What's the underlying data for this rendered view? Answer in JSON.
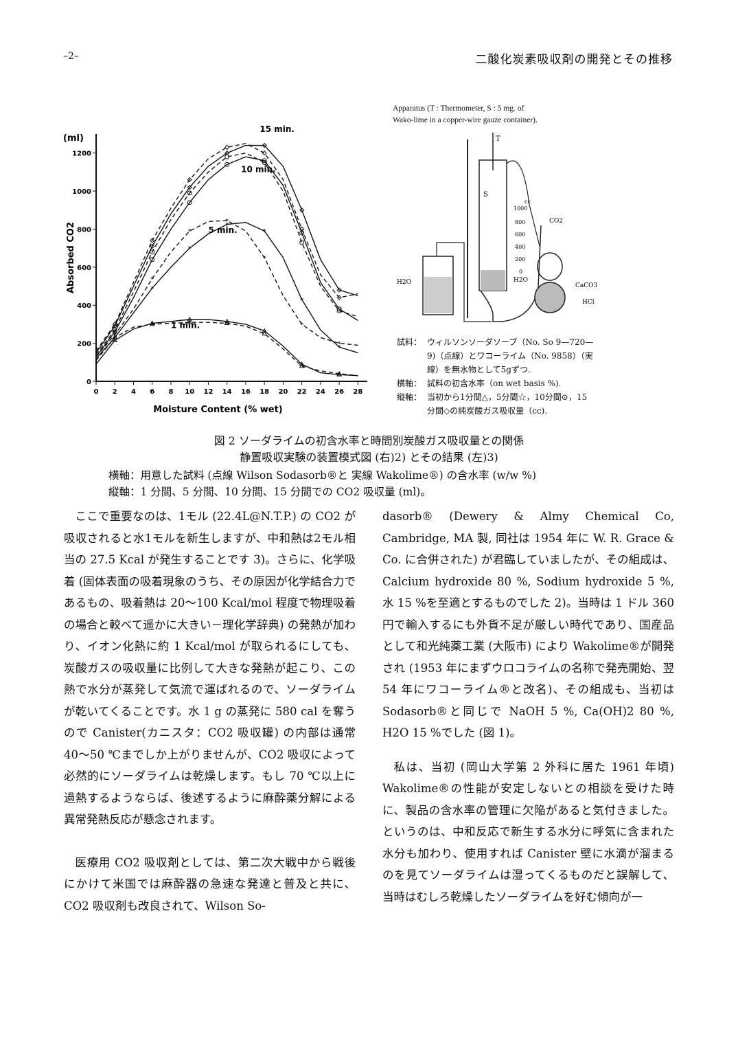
{
  "header": {
    "page_number": "–2–",
    "running_title": "二酸化炭素吸収剤の開発とその推移"
  },
  "chart_data": {
    "type": "line",
    "title": "",
    "xlabel": "Moisture Content (% wet)",
    "ylabel": "Absorbed CO2",
    "yunit": "(ml)",
    "xlim": [
      0,
      29
    ],
    "ylim": [
      0,
      1300
    ],
    "xticks": [
      0,
      2,
      4,
      6,
      8,
      10,
      12,
      14,
      16,
      18,
      20,
      22,
      24,
      26,
      28
    ],
    "yticks": [
      0,
      200,
      400,
      600,
      800,
      1000,
      1200
    ],
    "ytick_labels": [
      "0",
      "200",
      "400",
      "600",
      "800",
      "1000",
      "1200"
    ],
    "series": [
      {
        "name": "1 min.",
        "style": "solid",
        "x": [
          0,
          2,
          4,
          6,
          8,
          10,
          12,
          14,
          16,
          18,
          20,
          22,
          24,
          26,
          28
        ],
        "y": [
          90,
          215,
          275,
          305,
          315,
          325,
          325,
          315,
          300,
          265,
          185,
          90,
          45,
          35,
          30
        ]
      },
      {
        "name": "1 min.",
        "style": "dashed",
        "x": [
          0,
          2,
          4,
          6,
          8,
          10,
          12,
          14,
          16,
          18,
          20,
          22,
          24,
          26,
          28
        ],
        "y": [
          110,
          230,
          285,
          300,
          305,
          310,
          310,
          305,
          290,
          250,
          170,
          80,
          55,
          40,
          30
        ]
      },
      {
        "name": "5 min.",
        "style": "solid",
        "x": [
          0,
          2,
          4,
          6,
          8,
          10,
          12,
          14,
          16,
          18,
          20,
          22,
          24,
          26,
          28
        ],
        "y": [
          120,
          230,
          360,
          490,
          600,
          700,
          775,
          825,
          835,
          790,
          650,
          430,
          270,
          180,
          150
        ]
      },
      {
        "name": "5 min.",
        "style": "dashed",
        "x": [
          0,
          2,
          4,
          6,
          8,
          10,
          12,
          14,
          16,
          18,
          20,
          22,
          24,
          26,
          28
        ],
        "y": [
          130,
          245,
          380,
          540,
          680,
          790,
          840,
          845,
          790,
          650,
          450,
          300,
          230,
          200,
          190
        ]
      },
      {
        "name": "10 min.",
        "style": "solid",
        "x": [
          0,
          2,
          4,
          6,
          8,
          10,
          12,
          14,
          16,
          18,
          20,
          22,
          24,
          26,
          28
        ],
        "y": [
          130,
          260,
          440,
          640,
          800,
          940,
          1060,
          1140,
          1180,
          1160,
          1030,
          780,
          520,
          380,
          320
        ]
      },
      {
        "name": "10 min.",
        "style": "dashed",
        "x": [
          0,
          2,
          4,
          6,
          8,
          10,
          12,
          14,
          16,
          18,
          20,
          22,
          24,
          26,
          28
        ],
        "y": [
          140,
          270,
          470,
          680,
          850,
          990,
          1100,
          1180,
          1200,
          1150,
          1000,
          730,
          500,
          370,
          340
        ]
      },
      {
        "name": "15 min.",
        "style": "solid",
        "x": [
          0,
          2,
          4,
          6,
          8,
          10,
          12,
          14,
          16,
          18,
          20,
          22,
          24,
          26,
          28
        ],
        "y": [
          150,
          290,
          500,
          710,
          880,
          1020,
          1130,
          1200,
          1240,
          1240,
          1130,
          900,
          640,
          480,
          450
        ]
      },
      {
        "name": "15 min.",
        "style": "dashed",
        "x": [
          0,
          2,
          4,
          6,
          8,
          10,
          12,
          14,
          16,
          18,
          20,
          22,
          24,
          26,
          28
        ],
        "y": [
          160,
          300,
          520,
          740,
          910,
          1060,
          1170,
          1230,
          1250,
          1200,
          1060,
          800,
          560,
          440,
          460
        ]
      }
    ],
    "annotations": [
      "15 min.",
      "10 min.",
      "5 min.",
      "1 min."
    ]
  },
  "apparatus": {
    "caption_line1": "Apparatus (T : Thermometer, S : 5 mg. of",
    "caption_line2": "Wako-lime in a copper-wire gauze container).",
    "label_T": "T",
    "label_S": "S",
    "label_cc": "cc",
    "scale": [
      "1000",
      "800",
      "600",
      "400",
      "200",
      "0"
    ],
    "label_CO2": "CO2",
    "label_H2O_left": "H2O",
    "label_H2O_right": "H2O",
    "label_CaCO3": "CaCO3",
    "label_HCl": "HCl"
  },
  "legend": {
    "sample_key": "試料：",
    "sample_text_1": "ウィルソンソーダソーブ（No. So 9—720—",
    "sample_text_2": "9)（点線）とワコーライム（No. 9858）（実",
    "sample_text_3": "線）を無水物として5gずつ.",
    "x_key": "横軸：",
    "x_text": "試料の初含水率（on wet basis %).",
    "y_key": "縦軸：",
    "y_text_1": "当初から1分間△，5分間☆，10分間⊙，15",
    "y_text_2": "分間◇の純炭酸ガス吸収量（cc)."
  },
  "caption": {
    "line1": "図 2 ソーダライムの初含水率と時間別炭酸ガス吸収量との関係",
    "line2": "静置吸収実験の装置模式図 (右)2) とその結果 (左)3)",
    "note1": "横軸：用意した試料 (点線 Wilson Sodasorb®と 実線 Wakolime®) の含水率 (w/w %)",
    "note2": "縦軸：1 分間、5 分間、10 分間、15 分間での CO2 吸収量 (ml)。"
  },
  "left_column": {
    "p1": "ここで重要なのは、1モル (22.4L@N.T.P.) の CO2 が吸収されると水1モルを新生しますが、中和熱は2モル相当の 27.5 Kcal が発生することです 3)。さらに、化学吸着 (固体表面の吸着現象のうち、その原因が化学結合力であるもの、吸着熱は 20～100 Kcal/mol 程度で物理吸着の場合と較べて遥かに大きい－理化学辞典) の発熱が加わり、イオン化熱に約 1 Kcal/mol が取られるにしても、炭酸ガスの吸収量に比例して大きな発熱が起こり、この熱で水分が蒸発して気流で運ばれるので、ソーダライムが乾いてくることです。水 1 g の蒸発に 580 cal を奪うので Canister(カニスタ：CO2 吸収罐) の内部は通常 40～50 ℃までしか上がりませんが、CO2 吸収によって必然的にソーダライムは乾燥します。もし 70 ℃以上に過熱するようならば、後述するように麻酔薬分解による異常発熱反応が懸念されます。",
    "p2": "医療用 CO2 吸収剤としては、第二次大戦中から戦後にかけて米国では麻酔器の急速な発達と普及と共に、CO2 吸収剤も改良されて、Wilson So-"
  },
  "right_column": {
    "p1": "dasorb® (Dewery & Almy Chemical Co, Cambridge, MA 製, 同社は 1954 年に W. R. Grace & Co. に合併された) が君臨していましたが、その組成は、Calcium hydroxide 80 %, Sodium hydroxide 5 %, 水 15 %を至適とするものでした 2)。当時は 1 ドル 360 円で輸入するにも外貨不足が厳しい時代であり、国産品として和光純薬工業 (大阪市) により Wakolime®が開発され (1953 年にまずウロコライムの名称で発売開始、翌 54 年にワコーライム®と改名)、その組成も、当初は Sodasorb®と同じで NaOH 5 %, Ca(OH)2 80 %, H2O 15 %でした (図 1)。",
    "p2": "私は、当初 (岡山大学第 2 外科に居た 1961 年頃) Wakolime®の性能が安定しないとの相談を受けた時に、製品の含水率の管理に欠陥があると気付きました。というのは、中和反応で新生する水分に呼気に含まれた水分も加わり、使用すれば Canister 壁に水滴が溜まるのを見てソーダライムは湿ってくるものだと誤解して、当時はむしろ乾燥したソーダライムを好む傾向が一"
  }
}
